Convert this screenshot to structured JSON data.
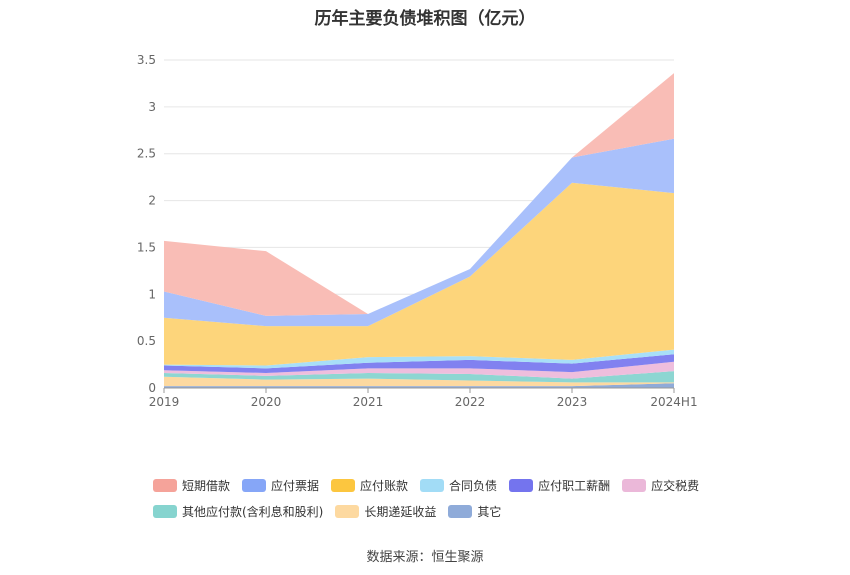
{
  "chart_data": {
    "type": "area",
    "stacked": true,
    "title": "历年主要负债堆积图（亿元）",
    "categories": [
      "2019",
      "2020",
      "2021",
      "2022",
      "2023",
      "2024H1"
    ],
    "ylim": [
      0,
      3.5
    ],
    "yticks": [
      "0",
      "0.5",
      "1",
      "1.5",
      "2",
      "2.5",
      "3",
      "3.5"
    ],
    "grid": true,
    "legend_position": "bottom",
    "series": [
      {
        "name": "其它",
        "color": "#8fabd9",
        "values": [
          0.02,
          0.02,
          0.02,
          0.02,
          0.02,
          0.05
        ]
      },
      {
        "name": "长期递延收益",
        "color": "#fdd9a0",
        "values": [
          0.1,
          0.07,
          0.08,
          0.06,
          0.04,
          0.01
        ]
      },
      {
        "name": "其他应付款(含利息和股利)",
        "color": "#8dd6d2",
        "values": [
          0.04,
          0.04,
          0.06,
          0.07,
          0.04,
          0.12
        ]
      },
      {
        "name": "应交税费",
        "color": "#eebedd",
        "values": [
          0.03,
          0.03,
          0.05,
          0.06,
          0.07,
          0.1
        ]
      },
      {
        "name": "应付职工薪酬",
        "color": "#8181f0",
        "values": [
          0.05,
          0.05,
          0.06,
          0.09,
          0.09,
          0.08
        ]
      },
      {
        "name": "合同负债",
        "color": "#a8dff8",
        "values": [
          0.01,
          0.03,
          0.06,
          0.04,
          0.04,
          0.05
        ]
      },
      {
        "name": "应付账款",
        "color": "#fdd57b",
        "values": [
          0.5,
          0.42,
          0.33,
          0.85,
          1.89,
          1.67
        ]
      },
      {
        "name": "应付票据",
        "color": "#a9c0fb",
        "values": [
          0.28,
          0.11,
          0.13,
          0.08,
          0.27,
          0.58
        ]
      },
      {
        "name": "短期借款",
        "color": "#f9bdb6",
        "values": [
          0.54,
          0.69,
          0.0,
          0.0,
          0.0,
          0.7
        ]
      }
    ]
  },
  "legend": {
    "row1": [
      {
        "label": "短期借款",
        "color": "#f5a39a"
      },
      {
        "label": "应付票据",
        "color": "#86a6f7"
      },
      {
        "label": "应付账款",
        "color": "#fcc63f"
      },
      {
        "label": "合同负债",
        "color": "#a2dcf6"
      },
      {
        "label": "应付职工薪酬",
        "color": "#7474ee"
      },
      {
        "label": "应交税费",
        "color": "#ebb8d9"
      }
    ],
    "row2": [
      {
        "label": "其他应付款(含利息和股利)",
        "color": "#86d4cf"
      },
      {
        "label": "长期递延收益",
        "color": "#fdd9a0"
      },
      {
        "label": "其它",
        "color": "#8fabd9"
      }
    ]
  },
  "source": "数据来源：恒生聚源"
}
